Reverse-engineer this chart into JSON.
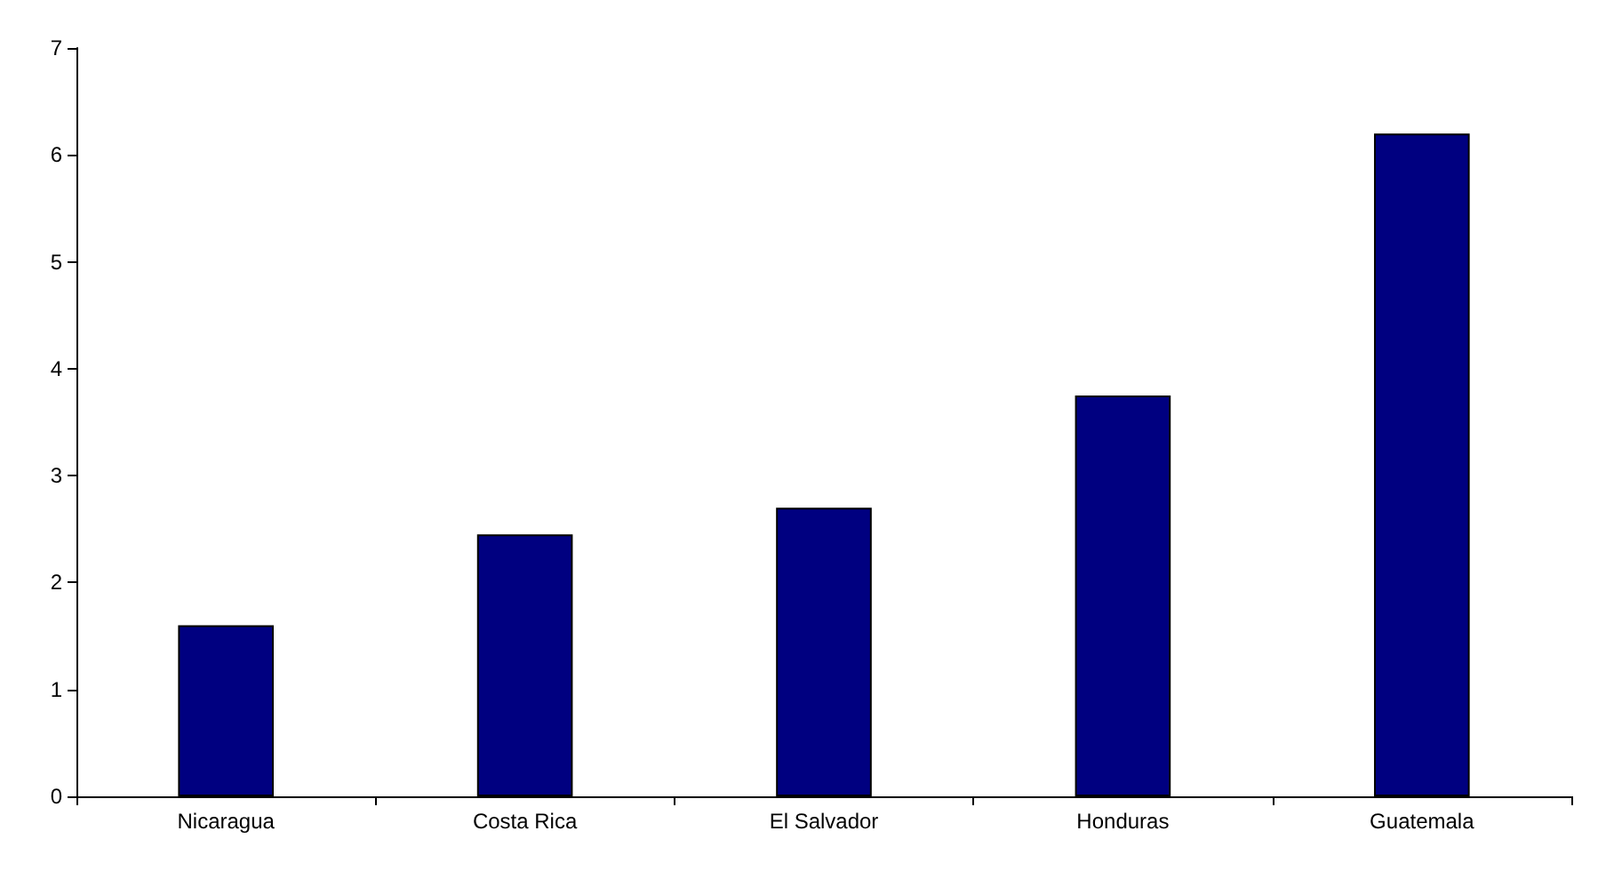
{
  "chart_data": {
    "type": "bar",
    "categories": [
      "Nicaragua",
      "Costa Rica",
      "El Salvador",
      "Honduras",
      "Guatemala"
    ],
    "values": [
      1.6,
      2.45,
      2.7,
      3.75,
      6.2
    ],
    "color": "#000080",
    "ylim": [
      0,
      7
    ],
    "yticks": [
      0,
      1,
      2,
      3,
      4,
      5,
      6,
      7
    ],
    "grid": false
  }
}
